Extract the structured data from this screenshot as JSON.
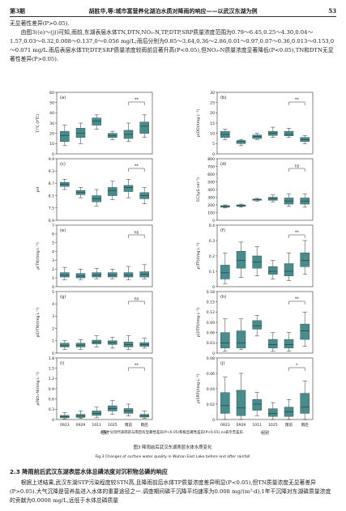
{
  "header": {
    "left": "第3期",
    "center": "胡胜华,等:城市富营养化湖泊水质对降雨的响应——以武汉东湖为例",
    "right": "53"
  },
  "intro": {
    "line1": "无显著性差异(P>0.05).",
    "para2": "由图3((e)～(j))可知,雨前,东湖表层水体TN,DTN,NO₃-N,TP,DTP,SRP质量浓度范围为0.79～6.45,0.25～4.30,0.04～1.57,0.03～0.32,0.008～0.137,0～0.056 mg/L;雨后分别为0.85～3.64,0.36～2.86,0.01～0.97,0.07～0.36,0.013～0.153,0～0.071 mg/L.雨后表层水体TP,DTP,SRP质量浓度较雨前显著升高(P<0.05),但NO₃-N质量浓度显著降低(P<0.05),TN和DTN无显著性差异(P>0.05)."
  },
  "figure": {
    "xlabel": "组别",
    "categories": [
      "0923",
      "0929",
      "1011",
      "1025",
      "雨前",
      "雨后"
    ],
    "note": "*和**分别代表雨前与雨后有显著性差异(P<0.05)和极显著性差异(P<0.01),ns表示无差异.",
    "caption_cn": "图3 降雨前后武汉东湖表层水体水质变化",
    "caption_en": "Fig.3 Changes of surface water quality in Wuhan East Lake before and after rainfall"
  },
  "chart_data": [
    {
      "type": "box",
      "panel": "(a)",
      "ylabel": "T/℃ (YTC)",
      "ylim": [
        0,
        60
      ],
      "ticks": [
        0,
        10,
        20,
        30,
        40,
        50,
        60
      ],
      "sig": "**",
      "boxes": [
        [
          8,
          12,
          18,
          22,
          28
        ],
        [
          10,
          16,
          20,
          25,
          30
        ],
        [
          24,
          28,
          32,
          35,
          38
        ],
        [
          14,
          16,
          18,
          20,
          22
        ],
        [
          12,
          15,
          19,
          23,
          30
        ],
        [
          16,
          20,
          27,
          31,
          38
        ]
      ]
    },
    {
      "type": "box",
      "panel": "(b)",
      "ylabel": "ρ(DO)/(mg·L⁻¹)",
      "ylim": [
        0,
        30
      ],
      "ticks": [
        0,
        5,
        10,
        15,
        20,
        25,
        30
      ],
      "sig": "**",
      "boxes": [
        [
          7,
          8,
          9.5,
          11,
          12
        ],
        [
          4,
          5,
          6,
          6.5,
          7
        ],
        [
          7,
          7.5,
          8.5,
          9.2,
          10
        ],
        [
          8,
          9,
          10,
          11,
          13
        ],
        [
          8,
          8.8,
          9.5,
          11,
          12.5
        ],
        [
          5,
          6,
          7,
          8,
          9
        ]
      ]
    },
    {
      "type": "box",
      "panel": "(c)",
      "ylabel": "pH",
      "ylim": [
        6.9,
        9.9
      ],
      "ticks": [
        6.9,
        7.5,
        8.1,
        8.7,
        9.3,
        9.9
      ],
      "sig": "**",
      "boxes": [
        [
          8.4,
          8.55,
          8.65,
          8.75,
          8.9
        ],
        [
          8.0,
          8.15,
          8.25,
          8.35,
          8.5
        ],
        [
          7.6,
          7.8,
          7.95,
          8.1,
          8.4
        ],
        [
          7.9,
          8.1,
          8.35,
          8.5,
          8.8
        ],
        [
          8.0,
          8.3,
          8.5,
          8.6,
          8.9
        ],
        [
          7.7,
          7.95,
          8.1,
          8.25,
          8.5
        ]
      ]
    },
    {
      "type": "box",
      "panel": "(d)",
      "ylabel": "EC/(μS·cm⁻¹)",
      "ylim": [
        0,
        800
      ],
      "ticks": [
        0,
        100,
        200,
        300,
        400,
        500,
        600,
        700,
        800
      ],
      "sig": "ns",
      "boxes": [
        [
          160,
          170,
          180,
          190,
          200
        ],
        [
          170,
          180,
          190,
          200,
          210
        ],
        [
          250,
          260,
          270,
          275,
          285
        ],
        [
          240,
          260,
          280,
          300,
          330
        ],
        [
          180,
          210,
          250,
          290,
          340
        ],
        [
          170,
          210,
          250,
          290,
          340
        ]
      ]
    },
    {
      "type": "box",
      "panel": "(e)",
      "ylabel": "ρ(TN)/(mg·L⁻¹)",
      "ylim": [
        0,
        7
      ],
      "ticks": [
        0,
        1,
        2,
        3,
        4,
        5,
        6,
        7
      ],
      "sig": "ns",
      "boxes": [
        [
          0.8,
          1.1,
          1.3,
          1.6,
          2.2
        ],
        [
          0.8,
          1.0,
          1.2,
          1.5,
          2.0
        ],
        [
          0.9,
          1.1,
          1.3,
          1.6,
          2.1
        ],
        [
          0.9,
          1.1,
          1.3,
          1.6,
          2.0
        ],
        [
          0.8,
          1.1,
          1.3,
          1.6,
          2.3
        ],
        [
          0.9,
          1.1,
          1.4,
          1.7,
          2.5
        ]
      ]
    },
    {
      "type": "box",
      "panel": "(f)",
      "ylabel": "ρ(TP)/(mg·L⁻¹)",
      "ylim": [
        0,
        0.4
      ],
      "ticks": [
        0,
        0.1,
        0.2,
        0.3,
        0.4
      ],
      "sig": "**",
      "boxes": [
        [
          0.02,
          0.05,
          0.09,
          0.14,
          0.22
        ],
        [
          0.06,
          0.12,
          0.17,
          0.23,
          0.29
        ],
        [
          0.07,
          0.12,
          0.16,
          0.2,
          0.26
        ],
        [
          0.05,
          0.08,
          0.1,
          0.13,
          0.17
        ],
        [
          0.04,
          0.07,
          0.1,
          0.15,
          0.22
        ],
        [
          0.08,
          0.13,
          0.17,
          0.22,
          0.3
        ]
      ]
    },
    {
      "type": "box",
      "panel": "(g)",
      "ylabel": "ρ(DTN)/(mg·L⁻¹)",
      "ylim": [
        0,
        5
      ],
      "ticks": [
        0,
        1,
        2,
        3,
        4,
        5
      ],
      "sig": "ns",
      "boxes": [
        [
          0.3,
          0.5,
          0.6,
          0.8,
          1.0
        ],
        [
          0.3,
          0.5,
          0.65,
          0.8,
          1.1
        ],
        [
          0.5,
          0.75,
          0.9,
          1.05,
          1.4
        ],
        [
          0.4,
          0.7,
          0.85,
          1.0,
          1.3
        ],
        [
          0.3,
          0.5,
          0.7,
          0.9,
          1.4
        ],
        [
          0.4,
          0.55,
          0.7,
          0.85,
          1.2
        ]
      ]
    },
    {
      "type": "box",
      "panel": "(h)",
      "ylabel": "ρ(DTP)/(mg·L⁻¹)",
      "ylim": [
        0,
        0.18
      ],
      "ticks": [
        0,
        0.03,
        0.06,
        0.09,
        0.12,
        0.15,
        0.18
      ],
      "sig": "**",
      "boxes": [
        [
          0.005,
          0.015,
          0.03,
          0.06,
          0.1
        ],
        [
          0.01,
          0.015,
          0.03,
          0.065,
          0.1
        ],
        [
          0.05,
          0.07,
          0.08,
          0.095,
          0.11
        ],
        [
          0.005,
          0.015,
          0.025,
          0.04,
          0.06
        ],
        [
          0.005,
          0.015,
          0.025,
          0.04,
          0.06
        ],
        [
          0.02,
          0.04,
          0.065,
          0.085,
          0.12
        ]
      ]
    },
    {
      "type": "box",
      "panel": "(i)",
      "ylabel": "ρ(NO₃-N)/(mg·L⁻¹)",
      "ylim": [
        0,
        1.8
      ],
      "ticks": [
        0,
        0.3,
        0.6,
        0.9,
        1.2,
        1.5,
        1.8
      ],
      "sig": "**",
      "boxes": [
        [
          0.02,
          0.05,
          0.08,
          0.12,
          0.2
        ],
        [
          0.03,
          0.06,
          0.1,
          0.15,
          0.25
        ],
        [
          0.05,
          0.12,
          0.18,
          0.25,
          0.36
        ],
        [
          0.15,
          0.25,
          0.32,
          0.4,
          0.55
        ],
        [
          0.1,
          0.18,
          0.25,
          0.32,
          0.45
        ],
        [
          0.03,
          0.07,
          0.1,
          0.15,
          0.25
        ]
      ]
    },
    {
      "type": "box",
      "panel": "(j)",
      "ylabel": "ρ(SRP)/(mg·L⁻¹)",
      "ylim": [
        0,
        0.08
      ],
      "ticks": [
        0,
        0.02,
        0.04,
        0.06,
        0.08
      ],
      "sig": "*",
      "boxes": [
        [
          0,
          0.008,
          0.018,
          0.035,
          0.055
        ],
        [
          0,
          0.005,
          0.015,
          0.038,
          0.06
        ],
        [
          0.005,
          0.012,
          0.02,
          0.026,
          0.035
        ],
        [
          0,
          0.004,
          0.008,
          0.014,
          0.022
        ],
        [
          0,
          0.004,
          0.01,
          0.016,
          0.026
        ],
        [
          0,
          0.008,
          0.016,
          0.034,
          0.05
        ]
      ]
    }
  ],
  "section": {
    "title": "2.3 降雨前后武汉东湖表层水体总磷浓度对沉积物总磷的响应"
  },
  "body2": {
    "text": "根据上述结果,武汉东湖STP污染程度较STN高,且降雨前后水体TP质量浓度差异明显(P<0.05),但TN质量浓度无显著差异(P>0.05).大气沉降是营养盐进入水体的重要途径之一.调查期间磷干沉降平均速率为0.008 mg/(m²·d),1年干沉降对东湖磷质量浓度的贡献为0.0008 mg/L,远低于水体总磷质量"
  }
}
